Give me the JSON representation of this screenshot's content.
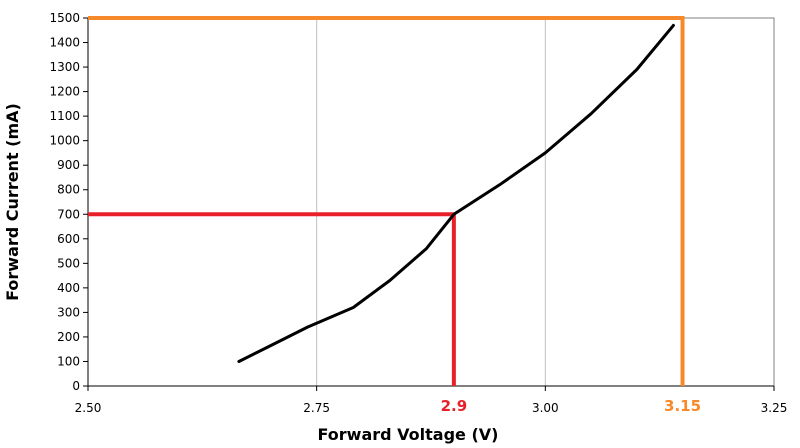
{
  "chart_data": {
    "type": "line",
    "xlabel": "Forward Voltage (V)",
    "ylabel": "Forward Current (mA)",
    "xlim": [
      2.5,
      3.25
    ],
    "ylim": [
      0,
      1500
    ],
    "x_ticks": [
      "2.50",
      "2.75",
      "3.00",
      "3.25"
    ],
    "y_ticks": [
      "0",
      "100",
      "200",
      "300",
      "400",
      "500",
      "600",
      "700",
      "800",
      "900",
      "1000",
      "1100",
      "1200",
      "1300",
      "1400",
      "1500"
    ],
    "grid": true,
    "series": [
      {
        "color": "#000000",
        "x": [
          2.665,
          2.7,
          2.74,
          2.79,
          2.83,
          2.87,
          2.9,
          2.95,
          3.0,
          3.05,
          3.1,
          3.14
        ],
        "y": [
          100,
          165,
          240,
          320,
          430,
          560,
          700,
          820,
          950,
          1110,
          1290,
          1470
        ]
      }
    ],
    "annotations": [
      {
        "label": "2.9",
        "x": 2.9,
        "y": 700,
        "color": "#e8202a"
      },
      {
        "label": "3.15",
        "x": 3.15,
        "y": 1500,
        "color": "#f7892b"
      }
    ]
  }
}
